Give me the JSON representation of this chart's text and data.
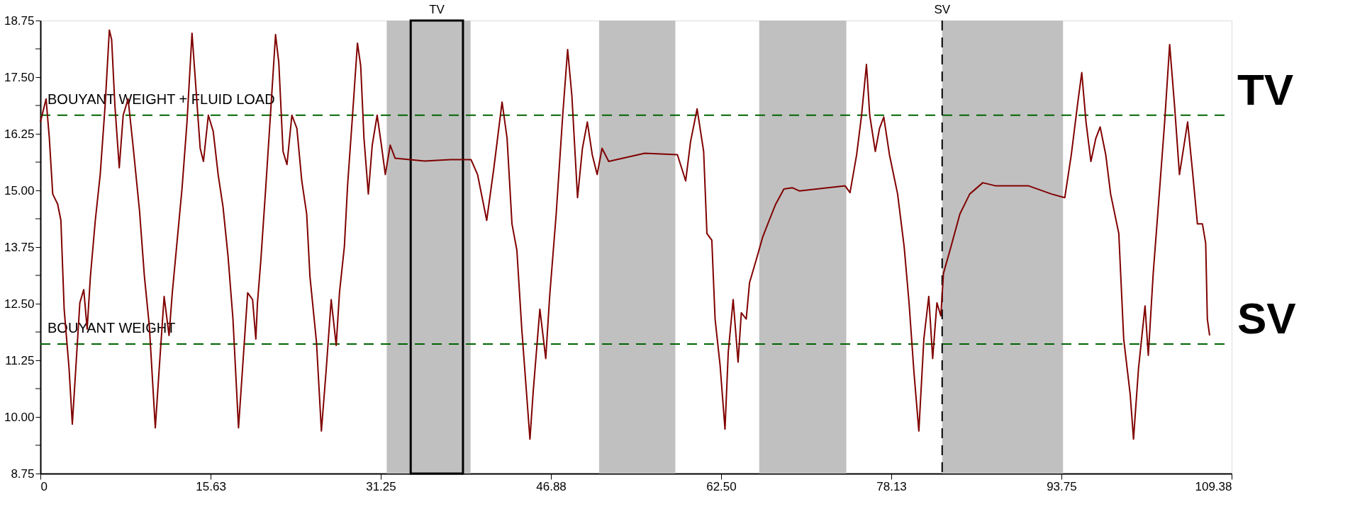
{
  "chart_data": {
    "type": "line",
    "x": [
      0.0,
      0.52,
      0.82,
      1.13,
      1.58,
      1.88,
      2.18,
      2.63,
      2.93,
      3.23,
      3.62,
      3.98,
      4.29,
      4.59,
      5.04,
      5.49,
      5.94,
      6.33,
      6.54,
      6.84,
      7.24,
      7.6,
      8.05,
      8.5,
      9.1,
      9.55,
      10.0,
      10.55,
      10.91,
      11.36,
      11.81,
      12.11,
      12.56,
      13.01,
      13.46,
      13.92,
      14.22,
      14.67,
      14.97,
      15.42,
      15.87,
      16.32,
      16.77,
      17.23,
      17.68,
      18.19,
      18.58,
      19.03,
      19.48,
      19.78,
      19.93,
      20.24,
      20.69,
      21.14,
      21.59,
      21.89,
      22.28,
      22.64,
      23.09,
      23.55,
      24.0,
      24.45,
      24.75,
      25.35,
      25.8,
      26.25,
      26.7,
      27.16,
      27.46,
      27.91,
      28.21,
      28.66,
      29.11,
      29.41,
      29.71,
      30.11,
      30.47,
      30.92,
      31.31,
      31.67,
      32.12,
      32.57,
      35.28,
      37.63,
      39.54,
      40.14,
      40.98,
      41.64,
      42.39,
      42.85,
      43.3,
      43.75,
      44.2,
      44.95,
      45.25,
      45.86,
      46.4,
      46.76,
      47.36,
      47.96,
      48.41,
      48.8,
      49.32,
      49.77,
      50.22,
      50.67,
      51.12,
      51.57,
      52.18,
      55.49,
      58.49,
      59.25,
      59.7,
      60.3,
      60.9,
      61.2,
      61.65,
      61.95,
      62.41,
      62.86,
      63.16,
      63.61,
      64.06,
      64.36,
      64.81,
      65.11,
      65.72,
      66.32,
      66.92,
      67.52,
      68.27,
      69.03,
      69.68,
      73.89,
      74.34,
      74.95,
      75.4,
      75.85,
      76.15,
      76.66,
      77.05,
      77.44,
      77.96,
      78.71,
      79.31,
      79.76,
      80.21,
      80.66,
      81.12,
      81.57,
      81.93,
      82.32,
      82.68,
      82.92,
      83.52,
      84.43,
      85.33,
      86.53,
      87.74,
      90.75,
      92.85,
      94.06,
      94.66,
      95.26,
      95.62,
      96.01,
      96.46,
      96.91,
      97.31,
      97.82,
      98.27,
      99.02,
      99.47,
      100.07,
      100.37,
      100.83,
      101.43,
      101.73,
      102.18,
      102.78,
      103.23,
      103.69,
      104.14,
      104.59,
      105.34,
      105.79,
      106.24,
      106.7,
      107.0,
      107.15,
      107.36
    ],
    "series": [
      {
        "color": "#800000",
        "values": [
          16.51,
          17.02,
          16.15,
          14.92,
          14.7,
          14.34,
          12.38,
          11.07,
          9.84,
          11.0,
          12.52,
          12.81,
          11.94,
          13.1,
          14.34,
          15.35,
          16.87,
          18.54,
          18.33,
          16.87,
          15.5,
          16.66,
          17.02,
          16.0,
          14.55,
          13.1,
          12.01,
          9.76,
          11.07,
          12.66,
          11.8,
          12.74,
          13.9,
          15.06,
          16.51,
          18.47,
          17.46,
          15.93,
          15.64,
          16.66,
          16.3,
          15.35,
          14.63,
          13.54,
          12.16,
          9.76,
          11.14,
          12.74,
          12.59,
          11.72,
          12.52,
          13.46,
          15.06,
          16.73,
          18.44,
          17.82,
          15.86,
          15.57,
          16.66,
          16.37,
          15.21,
          14.48,
          13.1,
          11.65,
          9.69,
          11.07,
          12.59,
          11.58,
          12.74,
          13.76,
          15.13,
          16.66,
          18.25,
          17.75,
          16.15,
          14.92,
          16.0,
          16.66,
          16.0,
          15.35,
          16.0,
          15.71,
          15.65,
          15.68,
          15.68,
          15.35,
          14.34,
          15.5,
          16.95,
          16.15,
          14.26,
          13.68,
          11.94,
          9.51,
          10.56,
          12.38,
          11.29,
          12.66,
          14.48,
          16.66,
          18.11,
          17.09,
          14.84,
          15.93,
          16.51,
          15.79,
          15.35,
          15.93,
          15.64,
          15.82,
          15.79,
          15.21,
          16.08,
          16.8,
          15.86,
          14.05,
          13.9,
          12.16,
          11.14,
          9.73,
          11.43,
          12.59,
          11.21,
          12.3,
          12.16,
          12.96,
          13.46,
          13.97,
          14.34,
          14.7,
          15.03,
          15.06,
          14.99,
          15.1,
          14.95,
          15.79,
          16.66,
          17.78,
          16.66,
          15.86,
          16.37,
          16.62,
          15.79,
          14.92,
          13.76,
          12.52,
          10.99,
          9.69,
          11.72,
          12.66,
          11.29,
          12.52,
          12.23,
          13.17,
          13.68,
          14.48,
          14.92,
          15.17,
          15.1,
          15.1,
          14.92,
          14.84,
          15.79,
          16.95,
          17.6,
          16.51,
          15.64,
          16.15,
          16.4,
          15.79,
          14.92,
          14.05,
          11.72,
          10.49,
          9.51,
          11.07,
          12.45,
          11.36,
          13.17,
          15.06,
          16.51,
          18.22,
          16.87,
          15.35,
          16.51,
          15.42,
          14.26,
          14.26,
          13.83,
          12.16,
          11.8
        ]
      }
    ],
    "xlim": [
      0,
      109.38
    ],
    "xticks": [
      0,
      15.63,
      31.25,
      46.88,
      {
        "value": 62.5,
        "label": "62.50"
      },
      78.13,
      93.75,
      109.38
    ],
    "ylim": [
      8.75,
      18.75
    ],
    "yticks": [
      8.75,
      {
        "value": 9.375,
        "label": null
      },
      {
        "value": 10,
        "label": "10.00"
      },
      {
        "value": 10.625,
        "label": null
      },
      11.25,
      {
        "value": 11.875,
        "label": null
      },
      {
        "value": 12.5,
        "label": "12.50"
      },
      {
        "value": 13.125,
        "label": null
      },
      13.75,
      {
        "value": 14.375,
        "label": null
      },
      {
        "value": 15,
        "label": "15.00"
      },
      {
        "value": 15.625,
        "label": null
      },
      16.25,
      {
        "value": 16.875,
        "label": null
      },
      {
        "value": 17.5,
        "label": "17.50"
      },
      {
        "value": 18.125,
        "label": null
      },
      18.75
    ],
    "bands": [
      {
        "axis": "x",
        "from": 31.8,
        "to": 39.5,
        "color": "#c0c0c0"
      },
      {
        "axis": "x",
        "from": 34.0,
        "to": 38.8,
        "color": "#c0c0c0",
        "label": "TV"
      },
      {
        "axis": "x",
        "from": 51.3,
        "to": 58.3,
        "color": "#c0c0c0"
      },
      {
        "axis": "x",
        "from": 66.0,
        "to": 74.0,
        "color": "#c0c0c0"
      },
      {
        "axis": "x",
        "from": 82.8,
        "to": 93.9,
        "color": "#c0c0c0"
      }
    ],
    "ref_lines": [
      {
        "axis": "y",
        "value": 16.66,
        "label": "BOUYANT WEIGHT + FLUID LOAD",
        "color": "#006400",
        "line_style": "dashed"
      },
      {
        "axis": "y",
        "value": 11.61,
        "label": "BOUYANT WEIGHT",
        "color": "#006400",
        "line_style": "dashed"
      },
      {
        "axis": "x",
        "value": 82.8,
        "label": "SV",
        "color": "#000000",
        "line_style": "dashed"
      }
    ],
    "annotations": [
      "TV",
      "SV"
    ],
    "grid": false,
    "marker": "none",
    "line_style": "solid"
  }
}
